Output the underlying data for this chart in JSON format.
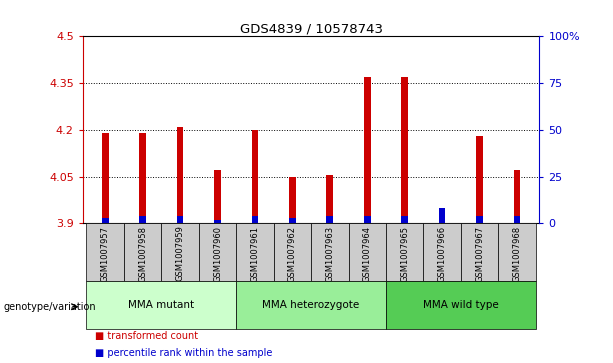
{
  "title": "GDS4839 / 10578743",
  "samples": [
    "GSM1007957",
    "GSM1007958",
    "GSM1007959",
    "GSM1007960",
    "GSM1007961",
    "GSM1007962",
    "GSM1007963",
    "GSM1007964",
    "GSM1007965",
    "GSM1007966",
    "GSM1007967",
    "GSM1007968"
  ],
  "red_values": [
    4.19,
    4.19,
    4.21,
    4.07,
    4.2,
    4.05,
    4.055,
    4.37,
    4.37,
    3.905,
    4.18,
    4.07
  ],
  "blue_values_pct": [
    3,
    4,
    4,
    2,
    4,
    3,
    4,
    4,
    4,
    8,
    4,
    4
  ],
  "base": 3.9,
  "ylim_left": [
    3.9,
    4.5
  ],
  "ylim_right": [
    0,
    100
  ],
  "yticks_left": [
    3.9,
    4.05,
    4.2,
    4.35,
    4.5
  ],
  "yticks_right": [
    0,
    25,
    50,
    75,
    100
  ],
  "ytick_labels_left": [
    "3.9",
    "4.05",
    "4.2",
    "4.35",
    "4.5"
  ],
  "ytick_labels_right": [
    "0",
    "25",
    "50",
    "75",
    "100%"
  ],
  "groups": [
    {
      "label": "MMA mutant",
      "start": 0,
      "end": 4,
      "color": "#ccffcc"
    },
    {
      "label": "MMA heterozygote",
      "start": 4,
      "end": 8,
      "color": "#99ee99"
    },
    {
      "label": "MMA wild type",
      "start": 8,
      "end": 12,
      "color": "#55cc55"
    }
  ],
  "legend_items": [
    {
      "label": "transformed count",
      "color": "#cc0000"
    },
    {
      "label": "percentile rank within the sample",
      "color": "#0000cc"
    }
  ],
  "bar_width": 0.18,
  "red_color": "#cc0000",
  "blue_color": "#0000cc",
  "tick_color_left": "#cc0000",
  "tick_color_right": "#0000cc",
  "xlabel_genotype": "genotype/variation",
  "background_xtick": "#cccccc"
}
